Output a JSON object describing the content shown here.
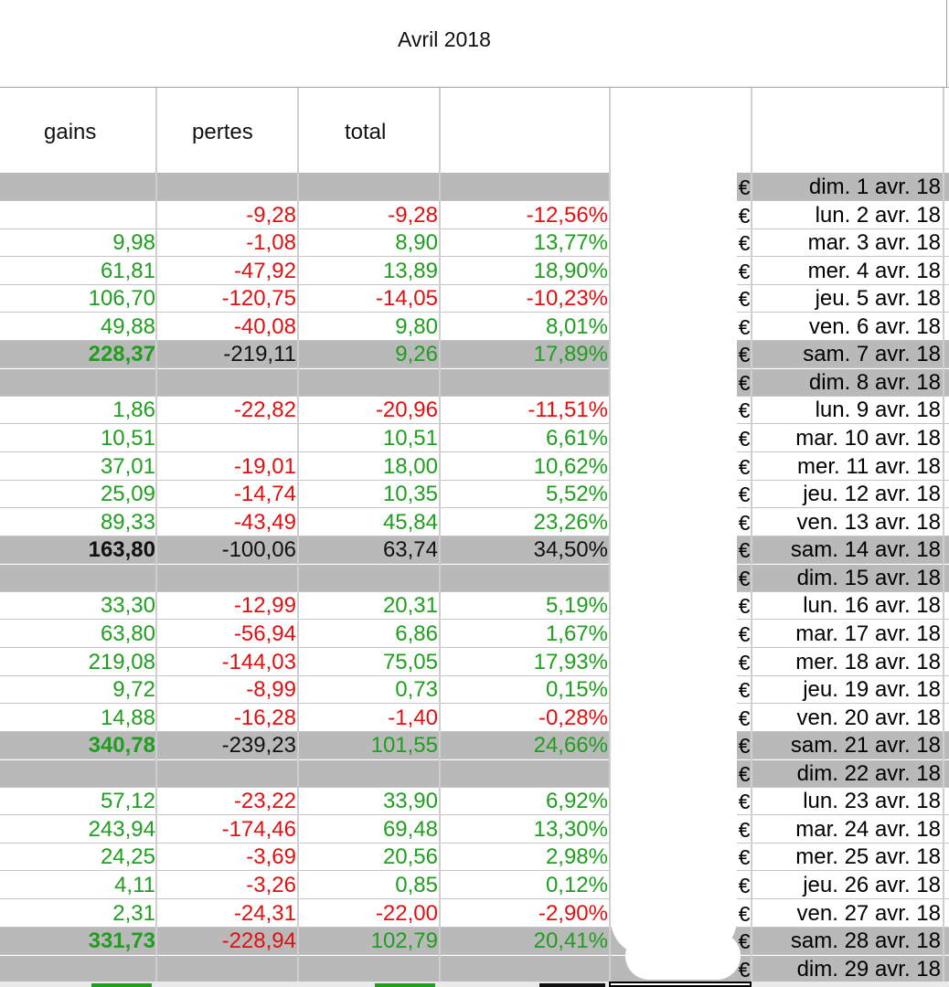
{
  "sheet": {
    "title": "Avril 2018",
    "headers": {
      "gains": "gains",
      "pertes": "pertes",
      "total": "total"
    },
    "currency_symbol": "€",
    "colors": {
      "positive": "#1f9e1f",
      "negative": "#e01010",
      "weekend_fill": "#b9b9b9"
    }
  },
  "rows": [
    {
      "gains": "",
      "pertes": "",
      "total": "",
      "pct": "",
      "date": "dim. 1 avr. 18",
      "weekend": true
    },
    {
      "gains": "",
      "pertes": "-9,28",
      "total": "-9,28",
      "pct": "-12,56%",
      "date": "lun. 2 avr. 18"
    },
    {
      "gains": "9,98",
      "pertes": "-1,08",
      "total": "8,90",
      "pct": "13,77%",
      "date": "mar. 3 avr. 18"
    },
    {
      "gains": "61,81",
      "pertes": "-47,92",
      "total": "13,89",
      "pct": "18,90%",
      "date": "mer. 4 avr. 18"
    },
    {
      "gains": "106,70",
      "pertes": "-120,75",
      "total": "-14,05",
      "pct": "-10,23%",
      "date": "jeu. 5 avr. 18"
    },
    {
      "gains": "49,88",
      "pertes": "-40,08",
      "total": "9,80",
      "pct": "8,01%",
      "date": "ven. 6 avr. 18"
    },
    {
      "gains": "228,37",
      "pertes": "-219,11",
      "total": "9,26",
      "pct": "17,89%",
      "date": "sam. 7 avr. 18",
      "weekend": true,
      "summary": true
    },
    {
      "gains": "",
      "pertes": "",
      "total": "",
      "pct": "",
      "date": "dim. 8 avr. 18",
      "weekend": true
    },
    {
      "gains": "1,86",
      "pertes": "-22,82",
      "total": "-20,96",
      "pct": "-11,51%",
      "date": "lun. 9 avr. 18"
    },
    {
      "gains": "10,51",
      "pertes": "",
      "total": "10,51",
      "pct": "6,61%",
      "date": "mar. 10 avr. 18"
    },
    {
      "gains": "37,01",
      "pertes": "-19,01",
      "total": "18,00",
      "pct": "10,62%",
      "date": "mer. 11 avr. 18"
    },
    {
      "gains": "25,09",
      "pertes": "-14,74",
      "total": "10,35",
      "pct": "5,52%",
      "date": "jeu. 12 avr. 18"
    },
    {
      "gains": "89,33",
      "pertes": "-43,49",
      "total": "45,84",
      "pct": "23,26%",
      "date": "ven. 13 avr. 18"
    },
    {
      "gains": "163,80",
      "pertes": "-100,06",
      "total": "63,74",
      "pct": "34,50%",
      "date": "sam. 14 avr. 18",
      "weekend": true,
      "summary": true,
      "black": true
    },
    {
      "gains": "",
      "pertes": "",
      "total": "",
      "pct": "",
      "date": "dim. 15 avr. 18",
      "weekend": true
    },
    {
      "gains": "33,30",
      "pertes": "-12,99",
      "total": "20,31",
      "pct": "5,19%",
      "date": "lun. 16 avr. 18"
    },
    {
      "gains": "63,80",
      "pertes": "-56,94",
      "total": "6,86",
      "pct": "1,67%",
      "date": "mar. 17 avr. 18"
    },
    {
      "gains": "219,08",
      "pertes": "-144,03",
      "total": "75,05",
      "pct": "17,93%",
      "date": "mer. 18 avr. 18"
    },
    {
      "gains": "9,72",
      "pertes": "-8,99",
      "total": "0,73",
      "pct": "0,15%",
      "date": "jeu. 19 avr. 18"
    },
    {
      "gains": "14,88",
      "pertes": "-16,28",
      "total": "-1,40",
      "pct": "-0,28%",
      "date": "ven. 20 avr. 18"
    },
    {
      "gains": "340,78",
      "pertes": "-239,23",
      "total": "101,55",
      "pct": "24,66%",
      "date": "sam. 21 avr. 18",
      "weekend": true,
      "summary": true
    },
    {
      "gains": "",
      "pertes": "",
      "total": "",
      "pct": "",
      "date": "dim. 22 avr. 18",
      "weekend": true
    },
    {
      "gains": "57,12",
      "pertes": "-23,22",
      "total": "33,90",
      "pct": "6,92%",
      "date": "lun. 23 avr. 18"
    },
    {
      "gains": "243,94",
      "pertes": "-174,46",
      "total": "69,48",
      "pct": "13,30%",
      "date": "mar. 24 avr. 18"
    },
    {
      "gains": "24,25",
      "pertes": "-3,69",
      "total": "20,56",
      "pct": "2,98%",
      "date": "mer. 25 avr. 18"
    },
    {
      "gains": "4,11",
      "pertes": "-3,26",
      "total": "0,85",
      "pct": "0,12%",
      "date": "jeu. 26 avr. 18"
    },
    {
      "gains": "2,31",
      "pertes": "-24,31",
      "total": "-22,00",
      "pct": "-2,90%",
      "date": "ven. 27 avr. 18"
    },
    {
      "gains": "331,73",
      "pertes": "-228,94",
      "total": "102,79",
      "pct": "20,41%",
      "date": "sam. 28 avr. 18",
      "weekend": true,
      "summary": true,
      "red_pertes": true
    },
    {
      "gains": "",
      "pertes": "",
      "total": "",
      "pct": "",
      "date": "dim. 29 avr. 18",
      "weekend": true
    }
  ]
}
